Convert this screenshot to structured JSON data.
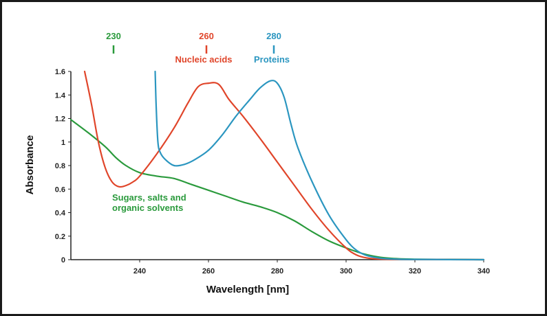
{
  "chart_data": {
    "type": "line",
    "title": "",
    "xlabel": "Wavelength [nm]",
    "ylabel": "Absorbance",
    "xlim": [
      220,
      340
    ],
    "ylim": [
      0,
      1.6
    ],
    "grid": false,
    "x_ticks": [
      240,
      260,
      280,
      300,
      320,
      340
    ],
    "x_tick_labels": [
      "240",
      "260",
      "280",
      "300",
      "320",
      "340"
    ],
    "y_ticks": [
      0,
      0.2,
      0.4,
      0.6,
      0.8,
      1,
      1.2,
      1.4,
      1.6
    ],
    "y_tick_labels": [
      "0",
      "0.2",
      "0.4",
      "0.6",
      "0.8",
      "1",
      "1.2",
      "1.4",
      "1.6"
    ],
    "colors": {
      "green": "#2a9a3c",
      "red": "#e0452a",
      "blue": "#2b96c0"
    },
    "series": [
      {
        "name": "Sugars, salts and organic solvents",
        "color": "#2a9a3c",
        "points": [
          [
            220,
            1.19
          ],
          [
            225,
            1.08
          ],
          [
            230,
            0.96
          ],
          [
            233,
            0.87
          ],
          [
            236,
            0.8
          ],
          [
            240,
            0.74
          ],
          [
            245,
            0.71
          ],
          [
            250,
            0.69
          ],
          [
            255,
            0.64
          ],
          [
            260,
            0.59
          ],
          [
            265,
            0.54
          ],
          [
            270,
            0.49
          ],
          [
            275,
            0.45
          ],
          [
            280,
            0.4
          ],
          [
            285,
            0.33
          ],
          [
            290,
            0.24
          ],
          [
            295,
            0.16
          ],
          [
            300,
            0.1
          ],
          [
            305,
            0.05
          ],
          [
            310,
            0.02
          ],
          [
            315,
            0.008
          ],
          [
            320,
            0.004
          ],
          [
            330,
            0.002
          ],
          [
            340,
            0.0
          ]
        ]
      },
      {
        "name": "Nucleic acids",
        "color": "#e0452a",
        "points": [
          [
            224,
            1.6
          ],
          [
            226,
            1.32
          ],
          [
            228,
            1.0
          ],
          [
            230,
            0.78
          ],
          [
            232,
            0.66
          ],
          [
            234,
            0.62
          ],
          [
            236,
            0.63
          ],
          [
            238,
            0.66
          ],
          [
            240,
            0.71
          ],
          [
            245,
            0.9
          ],
          [
            250,
            1.12
          ],
          [
            254,
            1.33
          ],
          [
            257,
            1.47
          ],
          [
            260,
            1.5
          ],
          [
            263,
            1.49
          ],
          [
            266,
            1.36
          ],
          [
            270,
            1.22
          ],
          [
            275,
            1.03
          ],
          [
            280,
            0.83
          ],
          [
            285,
            0.63
          ],
          [
            290,
            0.43
          ],
          [
            295,
            0.25
          ],
          [
            300,
            0.1
          ],
          [
            303,
            0.04
          ],
          [
            306,
            0.015
          ],
          [
            310,
            0.005
          ],
          [
            320,
            0.002
          ],
          [
            340,
            0.0
          ]
        ]
      },
      {
        "name": "Proteins",
        "color": "#2b96c0",
        "points": [
          [
            244.5,
            1.6
          ],
          [
            244.8,
            1.3
          ],
          [
            245.3,
            1.0
          ],
          [
            246,
            0.91
          ],
          [
            247.5,
            0.85
          ],
          [
            250,
            0.8
          ],
          [
            253,
            0.81
          ],
          [
            256,
            0.85
          ],
          [
            260,
            0.93
          ],
          [
            264,
            1.06
          ],
          [
            268,
            1.22
          ],
          [
            272,
            1.36
          ],
          [
            275,
            1.46
          ],
          [
            278,
            1.52
          ],
          [
            280,
            1.5
          ],
          [
            282,
            1.38
          ],
          [
            284,
            1.15
          ],
          [
            286,
            0.95
          ],
          [
            290,
            0.67
          ],
          [
            295,
            0.38
          ],
          [
            300,
            0.17
          ],
          [
            303,
            0.08
          ],
          [
            306,
            0.035
          ],
          [
            310,
            0.012
          ],
          [
            315,
            0.004
          ],
          [
            320,
            0.002
          ],
          [
            340,
            0.0
          ]
        ]
      }
    ],
    "annotations": [
      {
        "value": "230",
        "label": "",
        "color": "#2a9a3c"
      },
      {
        "value": "260",
        "label": "Nucleic acids",
        "color": "#e0452a"
      },
      {
        "value": "280",
        "label": "Proteins",
        "color": "#2b96c0"
      },
      {
        "value": "",
        "label_lines": [
          "Sugars, salts and",
          "organic solvents"
        ],
        "color": "#2a9a3c"
      }
    ]
  }
}
